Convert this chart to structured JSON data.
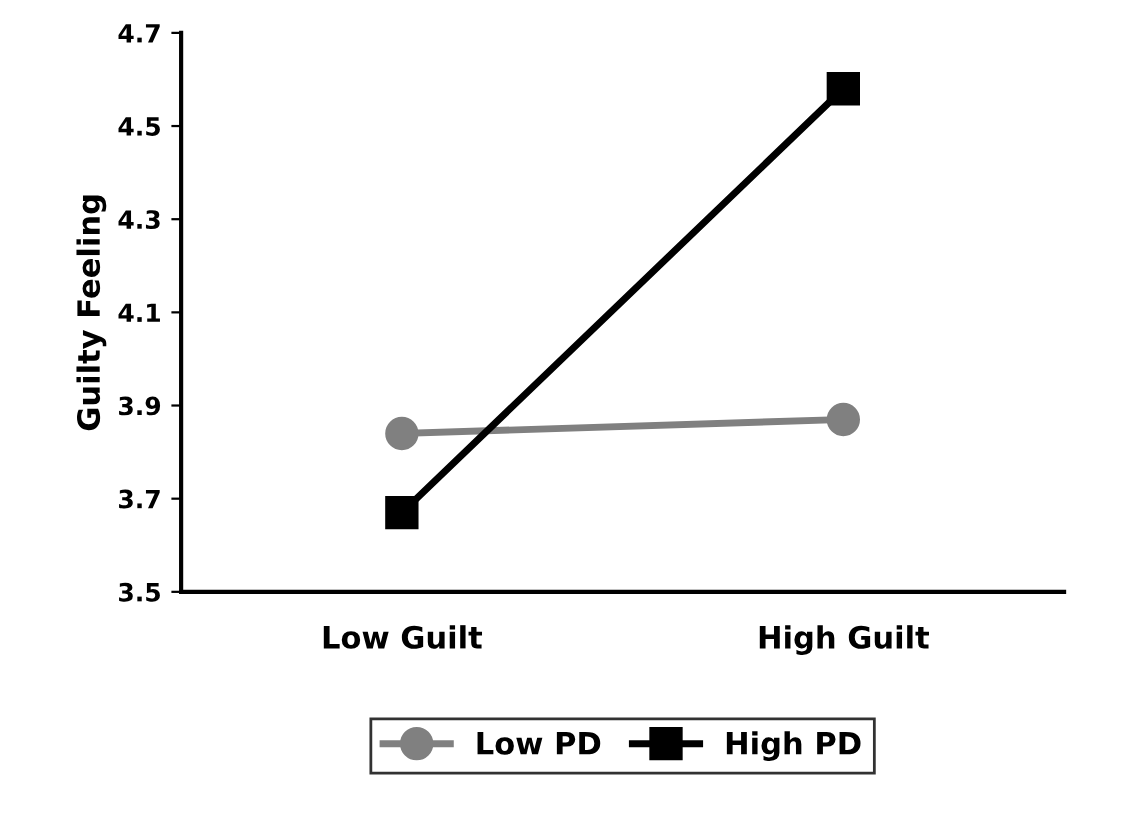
{
  "chart_data": {
    "type": "line",
    "ylabel": "Guilty Feeling",
    "categories": [
      "Low Guilt",
      "High Guilt"
    ],
    "series": [
      {
        "name": "Low PD",
        "color": "#808080",
        "values": [
          3.84,
          3.87
        ],
        "marker": "circle"
      },
      {
        "name": "High PD",
        "color": "#000000",
        "values": [
          3.67,
          4.58
        ],
        "marker": "square"
      }
    ],
    "ylim": [
      3.5,
      4.7
    ],
    "yticks": [
      3.5,
      3.7,
      3.9,
      4.1,
      4.3,
      4.5,
      4.7
    ],
    "grid": false,
    "legend": "bottom",
    "line_style": "solid"
  }
}
